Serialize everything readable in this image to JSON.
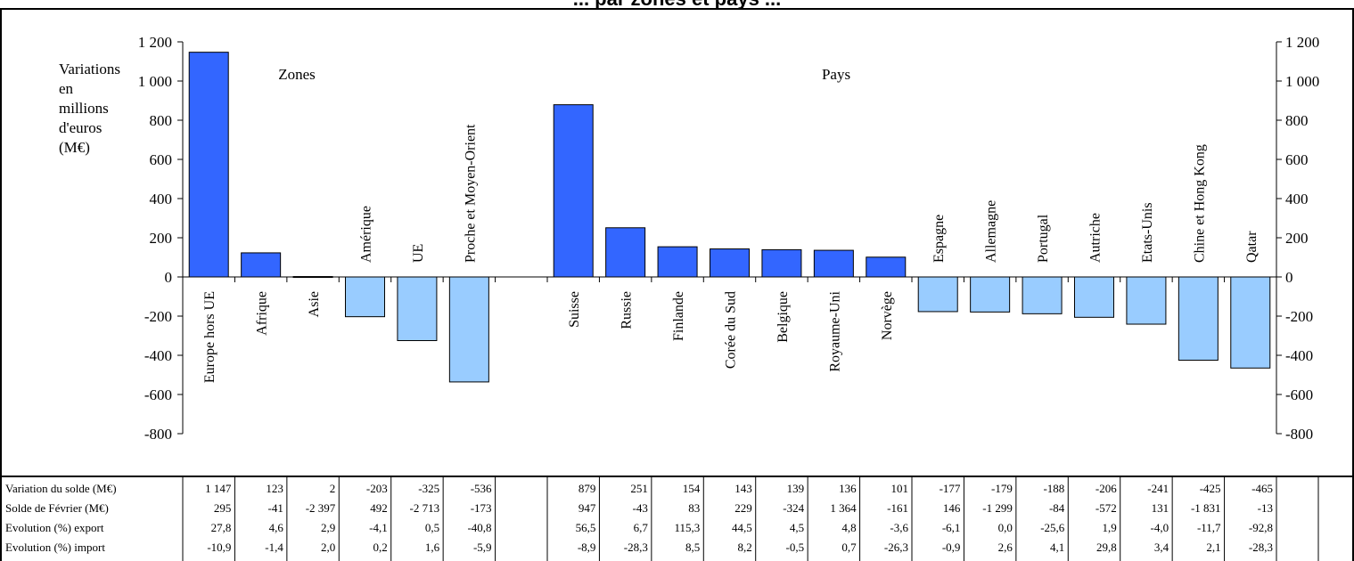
{
  "chart_data": {
    "type": "bar",
    "title": "... par zones et pays ...",
    "ylabel": "Variations en millions d'euros (M€)",
    "ylim": [
      -800,
      1200
    ],
    "y_ticks": [
      "1 200",
      "1 000",
      "800",
      "600",
      "400",
      "200",
      "0",
      "-200",
      "-400",
      "-600",
      "-800"
    ],
    "group_labels": [
      "Zones",
      "Pays"
    ],
    "categories": [
      "Europe hors UE",
      "Afrique",
      "Asie",
      "Amérique",
      "UE",
      "Proche et Moyen-Orient",
      "",
      "Suisse",
      "Russie",
      "Finlande",
      "Corée du Sud",
      "Belgique",
      "Royaume-Uni",
      "Norvège",
      "Espagne",
      "Allemagne",
      "Portugal",
      "Autriche",
      "Etats-Unis",
      "Chine et Hong Kong",
      "Qatar"
    ],
    "values": [
      1147,
      123,
      2,
      -203,
      -325,
      -536,
      null,
      879,
      251,
      154,
      143,
      139,
      136,
      101,
      -177,
      -179,
      -188,
      -206,
      -241,
      -425,
      -465
    ],
    "colors": {
      "positive": "#3366ff",
      "negative": "#99ccff",
      "axis": "#000000",
      "border": "#000000"
    },
    "grid": false,
    "legend": "none",
    "table": {
      "rows": [
        {
          "label": "Variation du solde (M€)",
          "values": [
            "1 147",
            "123",
            "2",
            "-203",
            "-325",
            "-536",
            "",
            "879",
            "251",
            "154",
            "143",
            "139",
            "136",
            "101",
            "-177",
            "-179",
            "-188",
            "-206",
            "-241",
            "-425",
            "-465"
          ]
        },
        {
          "label": "Solde de Février (M€)",
          "values": [
            "295",
            "-41",
            "-2 397",
            "492",
            "-2 713",
            "-173",
            "",
            "947",
            "-43",
            "83",
            "229",
            "-324",
            "1 364",
            "-161",
            "146",
            "-1 299",
            "-84",
            "-572",
            "131",
            "-1 831",
            "-13"
          ]
        },
        {
          "label": "Evolution (%) export",
          "values": [
            "27,8",
            "4,6",
            "2,9",
            "-4,1",
            "0,5",
            "-40,8",
            "",
            "56,5",
            "6,7",
            "115,3",
            "44,5",
            "4,5",
            "4,8",
            "-3,6",
            "-6,1",
            "0,0",
            "-25,6",
            "1,9",
            "-4,0",
            "-11,7",
            "-92,8"
          ]
        },
        {
          "label": "Evolution (%) import",
          "values": [
            "-10,9",
            "-1,4",
            "2,0",
            "0,2",
            "1,6",
            "-5,9",
            "",
            "-8,9",
            "-28,3",
            "8,5",
            "8,2",
            "-0,5",
            "0,7",
            "-26,3",
            "-0,9",
            "2,6",
            "4,1",
            "29,8",
            "3,4",
            "2,1",
            "-28,3"
          ]
        }
      ]
    }
  }
}
